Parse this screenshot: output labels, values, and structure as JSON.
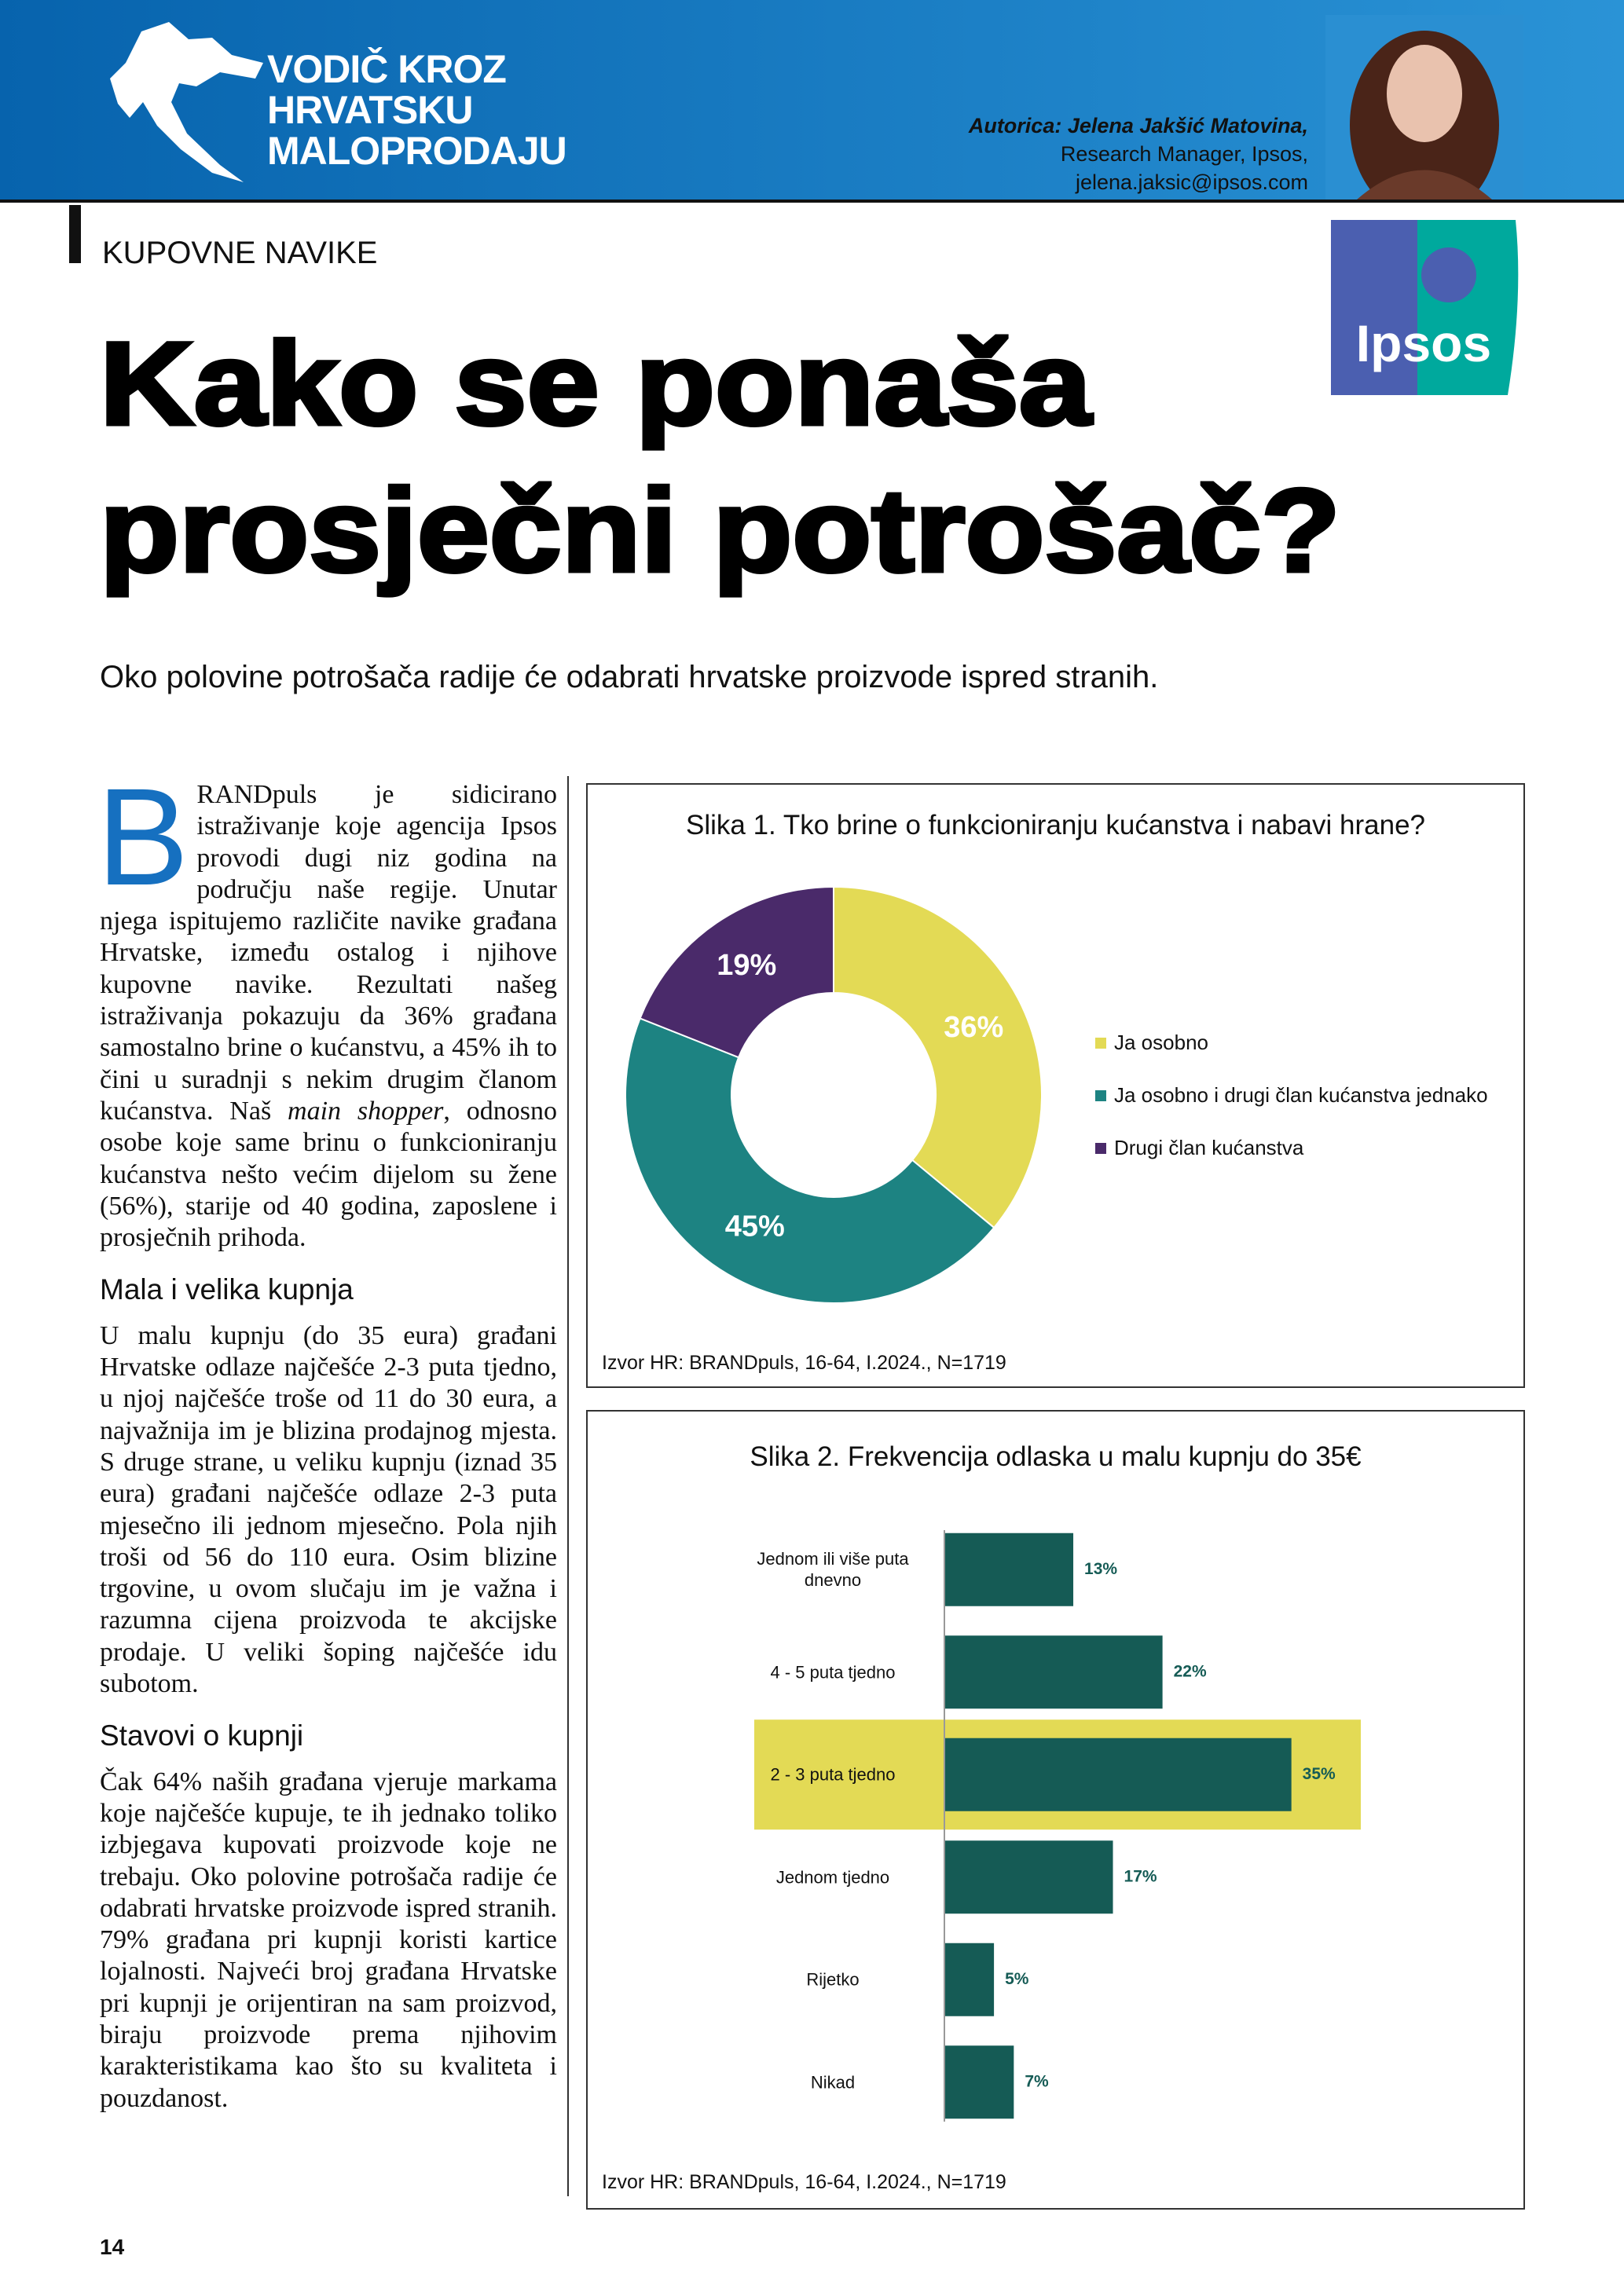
{
  "header": {
    "series_title": [
      "VODIČ KROZ",
      "HRVATSKU",
      "MALOPRODAJU"
    ],
    "author": "Autorica: Jelena Jakšić Matovina,",
    "author_role": "Research Manager, Ipsos,",
    "author_email": "jelena.jaksic@ipsos.com"
  },
  "logo": "Ipsos",
  "section": "KUPOVNE NAVIKE",
  "title": [
    "Kako se ponaša",
    "prosječni potrošač?"
  ],
  "subtitle": "Oko polovine potrošača radije će odabrati hrvatske proizvode ispred stranih.",
  "article": {
    "drop_cap": "B",
    "paragraph_1": [
      "RANDpuls je sidicirano istraživanje koje agencija Ipsos provodi dugi niz godina na području naše regije. Unutar njega ispitujemo različite navike građana Hrvatske, između ostalog i njihove kupovne navike. Rezultati našeg istraživanja pokazuju da 36% građana samostalno brine o kućanstvu, a 45% ih to čini u suradnji s nekim drugim članom kućanstva. Naš ",
      "main shopper",
      ", odnosno osobe koje same brinu o funkcioniranju kućanstva nešto većim dijelom su žene (56%), starije od 40 godina, zaposlene i prosječnih prihoda."
    ],
    "heading_1": "Mala i velika kupnja",
    "paragraph_2": "U malu kupnju (do 35 eura) građani Hrvatske odlaze najčešće 2-3 puta tjedno, u njoj najčešće troše od 11 do 30 eura, a najvažnija im je blizina prodajnog mjesta. S druge strane, u veliku kupnju (iznad 35 eura) građani najčešće odlaze 2-3 puta mjesečno ili jednom mjesečno. Pola njih troši od 56 do 110 eura. Osim blizine trgovine, u ovom slučaju im je važna i razumna cijena proizvoda te akcijske prodaje. U veliki šoping najčešće idu subotom.",
    "heading_2": "Stavovi o kupnji",
    "paragraph_3": "Čak 64% naših građana vjeruje markama koje najčešće kupuje, te ih jednako toliko izbjegava kupovati proizvode koje ne trebaju. Oko polovine potrošača radije će odabrati hrvatske proizvode ispred stranih. 79% građana pri kupnji koristi kartice lojalnosti. Najveći broj građana Hrvatske pri kupnji je orijentiran na sam proizvod, biraju proizvode prema njihovim karakteristikama kao što su kvaliteta i pouzdanost."
  },
  "chart_data": [
    {
      "type": "donut",
      "title": "Slika 1. Tko brine o funkcioniranju kućanstva i nabavi hrane?",
      "categories": [
        "Ja osobno",
        "Ja osobno i drugi član kućanstva jednako",
        "Drugi član kućanstva"
      ],
      "values": [
        36,
        45,
        19
      ],
      "value_labels": [
        "36%",
        "45%",
        "19%"
      ],
      "colors": [
        "#e3da55",
        "#1d8382",
        "#4a2a6a"
      ],
      "source": "Izvor HR: BRANDpuls, 16-64, I.2024., N=1719"
    },
    {
      "type": "bar",
      "orientation": "horizontal",
      "title": "Slika 2. Frekvencija odlaska u malu kupnju do 35€",
      "categories": [
        "Jednom ili više puta dnevno",
        "4 - 5 puta tjedno",
        "2 - 3 puta tjedno",
        "Jednom tjedno",
        "Rijetko",
        "Nikad"
      ],
      "values": [
        13,
        22,
        35,
        17,
        5,
        7
      ],
      "value_labels": [
        "13%",
        "22%",
        "35%",
        "17%",
        "5%",
        "7%"
      ],
      "color": "#155b55",
      "highlight_index": 2,
      "highlight_color": "#e3da55",
      "xlim": [
        0,
        42
      ],
      "source": "Izvor HR: BRANDpuls, 16-64, I.2024., N=1719"
    }
  ],
  "page_number": "14"
}
